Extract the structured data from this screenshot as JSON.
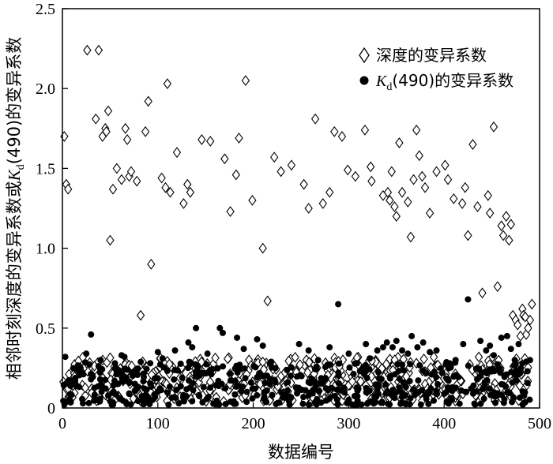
{
  "chart_data": {
    "type": "scatter",
    "xlabel": "数据编号",
    "ylabel": "相邻时刻深度的变异系数或K_d(490)的变异系数",
    "ylabel_parts": [
      "相邻时刻深度的变异系数或",
      "K",
      "d",
      "(490)的变异系数"
    ],
    "xlim": [
      0,
      500
    ],
    "ylim": [
      0,
      2.5
    ],
    "xticks": [
      "0",
      "100",
      "200",
      "300",
      "400",
      "500"
    ],
    "yticks": [
      "0",
      "0.5",
      "1.0",
      "1.5",
      "2.0",
      "2.5"
    ],
    "grid": false,
    "legend_position": "top-right",
    "legend": {
      "depth": "深度的变异系数",
      "kd_sym": "K",
      "kd_sub": "d",
      "kd_rest": "(490)的变异系数"
    },
    "series": [
      {
        "name": "深度的变异系数",
        "marker": "diamond-open",
        "color": "#000000",
        "x": [
          2,
          4,
          6,
          26,
          35,
          38,
          42,
          45,
          46,
          48,
          50,
          53,
          57,
          62,
          66,
          68,
          70,
          72,
          78,
          82,
          87,
          90,
          93,
          104,
          108,
          110,
          113,
          120,
          127,
          131,
          134,
          146,
          155,
          170,
          176,
          182,
          185,
          192,
          199,
          210,
          215,
          222,
          229,
          240,
          253,
          258,
          265,
          273,
          280,
          285,
          293,
          299,
          307,
          317,
          323,
          324,
          336,
          341,
          343,
          345,
          348,
          350,
          353,
          356,
          362,
          365,
          368,
          371,
          374,
          377,
          380,
          385,
          392,
          401,
          404,
          410,
          419,
          422,
          425,
          430,
          435,
          440,
          446,
          448,
          452,
          456,
          460,
          462,
          465,
          468,
          470,
          472,
          475,
          477,
          480,
          482,
          483,
          485,
          486,
          488,
          490,
          492
        ],
        "y": [
          1.7,
          1.4,
          1.37,
          2.24,
          1.81,
          2.24,
          1.7,
          1.75,
          1.73,
          1.86,
          1.05,
          1.37,
          1.5,
          1.43,
          1.75,
          1.68,
          1.45,
          1.48,
          1.42,
          0.58,
          1.73,
          1.92,
          0.9,
          1.44,
          1.38,
          2.03,
          1.35,
          1.6,
          1.28,
          1.4,
          1.35,
          1.68,
          1.67,
          1.56,
          1.23,
          1.46,
          1.69,
          2.05,
          1.3,
          1.0,
          0.67,
          1.57,
          1.48,
          1.52,
          1.4,
          1.25,
          1.81,
          1.28,
          1.35,
          1.73,
          1.7,
          1.49,
          1.45,
          1.74,
          1.51,
          1.42,
          1.33,
          1.35,
          1.3,
          1.48,
          1.26,
          1.2,
          1.66,
          1.35,
          1.29,
          1.07,
          1.43,
          1.74,
          1.58,
          1.45,
          1.38,
          1.22,
          1.48,
          1.52,
          1.43,
          1.31,
          1.28,
          1.38,
          1.08,
          1.65,
          1.26,
          0.72,
          1.33,
          1.22,
          1.76,
          0.76,
          1.14,
          1.08,
          1.2,
          1.05,
          1.15,
          0.58,
          0.55,
          0.52,
          0.45,
          0.62,
          0.58,
          0.57,
          0.46,
          0.5,
          0.55,
          0.65
        ],
        "note": "plus dense low-value cluster between 0.05 and 0.35 across x 0-490"
      },
      {
        "name": "K_d(490)的变异系数",
        "marker": "circle-filled",
        "color": "#000000",
        "x": [
          3,
          25,
          30,
          40,
          55,
          62,
          65,
          92,
          100,
          105,
          118,
          132,
          136,
          140,
          152,
          165,
          168,
          183,
          190,
          204,
          210,
          248,
          258,
          268,
          280,
          289,
          300,
          318,
          322,
          330,
          336,
          340,
          346,
          350,
          356,
          362,
          366,
          372,
          378,
          385,
          392,
          412,
          420,
          425,
          438,
          444,
          448,
          452,
          460,
          466,
          470,
          474,
          478,
          482,
          486,
          490
        ],
        "y": [
          0.32,
          0.34,
          0.46,
          0.3,
          0.28,
          0.33,
          0.32,
          0.28,
          0.35,
          0.31,
          0.36,
          0.41,
          0.38,
          0.5,
          0.34,
          0.5,
          0.47,
          0.44,
          0.37,
          0.43,
          0.39,
          0.4,
          0.36,
          0.3,
          0.38,
          0.65,
          0.34,
          0.4,
          0.31,
          0.36,
          0.38,
          0.41,
          0.38,
          0.42,
          0.36,
          0.34,
          0.45,
          0.38,
          0.41,
          0.35,
          0.36,
          0.3,
          0.4,
          0.68,
          0.42,
          0.36,
          0.39,
          0.33,
          0.44,
          0.45,
          0.37,
          0.3,
          0.4,
          0.28,
          0.29,
          0.3
        ],
        "note": "plus dense low-value cluster between 0.02 and 0.28 across x 0-490"
      }
    ]
  }
}
